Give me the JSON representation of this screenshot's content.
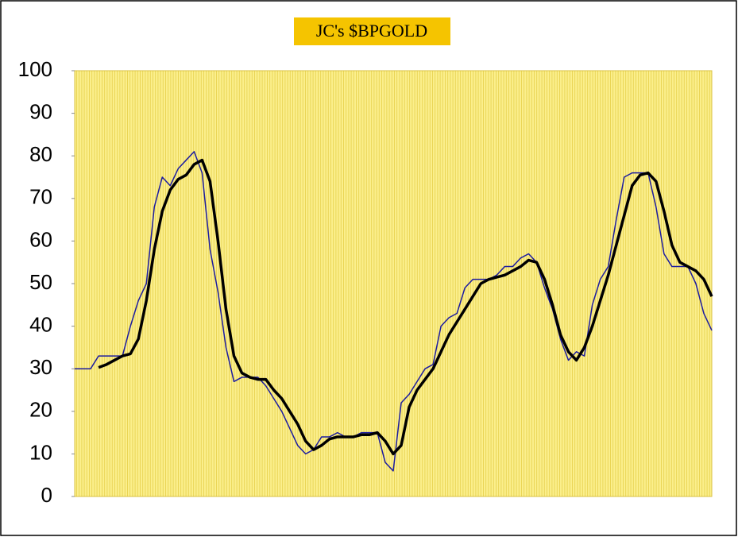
{
  "chart_data": {
    "type": "line",
    "title": "JC's $BPGOLD",
    "categories": [
      null,
      null,
      null,
      null,
      null,
      null,
      null,
      null,
      null,
      null,
      null,
      null,
      null,
      null,
      null,
      null,
      null,
      null,
      null,
      null,
      null,
      null,
      null,
      null,
      null,
      null,
      null,
      null,
      null,
      null,
      null,
      null,
      null,
      null,
      null,
      null,
      null,
      null,
      null,
      null,
      null,
      null,
      null,
      null,
      null,
      null,
      null,
      null,
      null,
      null,
      null,
      null,
      null,
      null,
      null,
      null,
      null,
      null,
      null,
      null,
      null,
      null,
      null,
      null,
      null,
      null,
      null,
      null,
      null,
      null,
      null,
      null,
      null,
      null,
      null,
      null,
      null,
      null,
      null,
      null,
      null
    ],
    "series": [
      {
        "color": "#1c1ca0",
        "width": 1.5,
        "values": [
          30,
          30,
          30,
          33,
          33,
          33,
          33,
          40,
          46,
          50,
          68,
          75,
          73,
          77,
          79,
          81,
          76,
          58,
          48,
          35,
          27,
          28,
          28,
          28,
          26,
          23,
          20,
          16,
          12,
          10,
          11,
          14,
          14,
          15,
          14,
          14,
          15,
          15,
          15,
          8,
          6,
          22,
          24,
          27,
          30,
          31,
          40,
          42,
          43,
          49,
          51,
          51,
          51,
          52,
          54,
          54,
          56,
          57,
          55,
          49,
          44,
          37,
          32,
          34,
          33,
          45,
          51,
          54,
          65,
          75,
          76,
          76,
          76,
          68,
          57,
          54,
          54,
          54,
          50,
          43,
          39
        ]
      },
      {
        "color": "#000000",
        "width": 3.5,
        "values": [
          null,
          null,
          null,
          30.3,
          31,
          32,
          33,
          33.5,
          37,
          46,
          58,
          67,
          72,
          74.5,
          75.5,
          78,
          79,
          74,
          60,
          44,
          33,
          29,
          28,
          27.5,
          27.5,
          25,
          23,
          20,
          17,
          13,
          11,
          12,
          13.5,
          14,
          14,
          14,
          14.5,
          14.5,
          15,
          13,
          10,
          12,
          21,
          25,
          27.5,
          30,
          34,
          38,
          41,
          44,
          47,
          50,
          51,
          51.5,
          52,
          53,
          54,
          55.5,
          55,
          51,
          45,
          38,
          34,
          32,
          35,
          40,
          46,
          52,
          59,
          66,
          73,
          75.5,
          76,
          74,
          67,
          59,
          55,
          54,
          53,
          51,
          47
        ]
      }
    ],
    "ylim": [
      0,
      100
    ],
    "yticks": [
      0,
      10,
      20,
      30,
      40,
      50,
      60,
      70,
      80,
      90,
      100
    ]
  }
}
